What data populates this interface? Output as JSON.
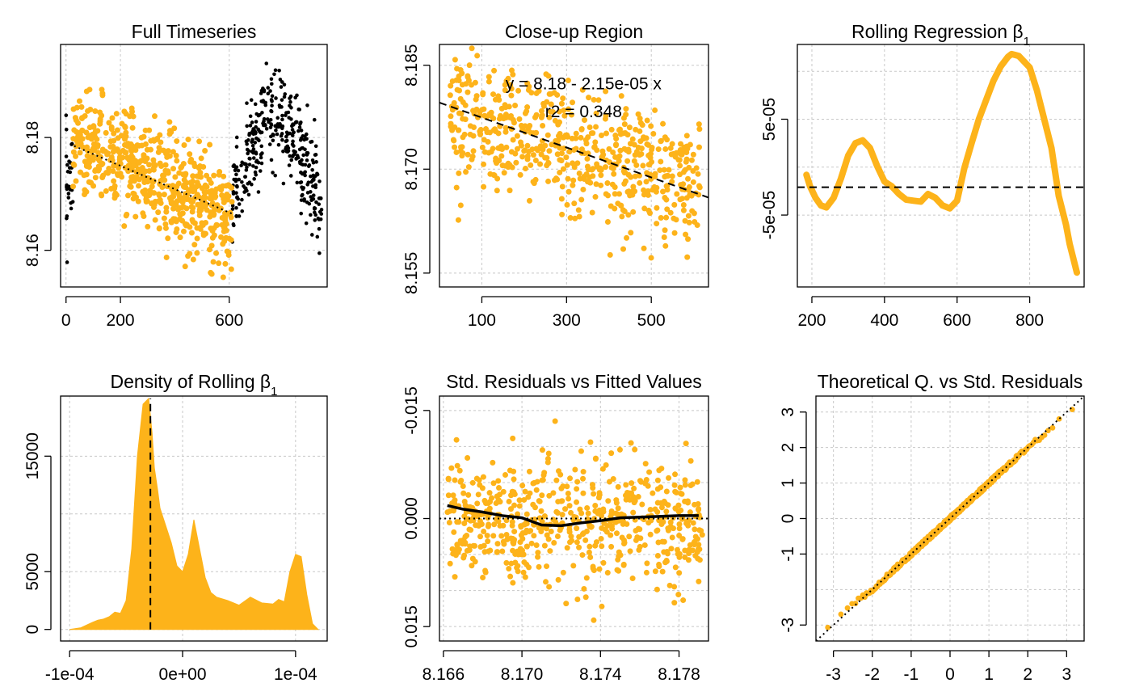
{
  "figure": {
    "accent": "#FDB31A",
    "secondary": "#000000"
  },
  "chart_data": [
    {
      "id": "full",
      "type": "scatter",
      "title": "Full Timeseries",
      "title_sub": "",
      "xlim": [
        -20,
        960
      ],
      "ylim": [
        8.1535,
        8.1965
      ],
      "xticks": [
        0,
        200,
        600
      ],
      "yticks": [
        8.16,
        8.18
      ],
      "vertical_y_labels": true,
      "xlabel": "",
      "ylabel": "",
      "series": [
        {
          "color": "#000000",
          "points_generator": {
            "x_ranges": [
              [
                0,
                25
              ],
              [
                610,
                940
              ]
            ],
            "n": 380,
            "trend": "0-25: 8.1725; 610-735: 8.168 to 8.184; 735-800: 8.184; 800-940: 8.184 to 8.168",
            "noise_sd": 0.0042
          }
        },
        {
          "color": "#FDB31A",
          "points_generator": {
            "x_ranges": [
              [
                25,
                610
              ]
            ],
            "n": 600,
            "trend": "8.1795 at x=25 to 8.166 at x=610",
            "noise_sd": 0.0045,
            "y_range": [
              8.1545,
              8.1885
            ]
          }
        }
      ],
      "lines": [
        {
          "type": "dotted",
          "x": [
            30,
            610
          ],
          "y": [
            8.1785,
            8.1665
          ],
          "color": "#000000"
        }
      ]
    },
    {
      "id": "closeup",
      "type": "scatter",
      "title": "Close-up Region",
      "title_sub": "",
      "xlim": [
        0,
        635
      ],
      "ylim": [
        8.153,
        8.188
      ],
      "xticks": [
        100,
        300,
        500
      ],
      "yticks": [
        8.155,
        8.17,
        8.185
      ],
      "ytick_labels": [
        "8.155",
        "8.170",
        "8.185"
      ],
      "vertical_y_labels": true,
      "xlabel": "",
      "ylabel": "",
      "annotations": [
        {
          "text": "y = 8.18 - 2.15e-05 x",
          "x": 340,
          "y": 8.1815
        },
        {
          "text": "r2 = 0.348",
          "x": 340,
          "y": 8.1775
        }
      ],
      "series": [
        {
          "color": "#FDB31A",
          "points_generator": {
            "x_ranges": [
              [
                25,
                615
              ]
            ],
            "n": 600,
            "trend": "8.178 at x=25 to 8.1668 at x=615",
            "noise_sd": 0.0045,
            "y_range": [
              8.1545,
              8.1875
            ]
          }
        }
      ],
      "lines": [
        {
          "type": "dashed",
          "x": [
            0,
            635
          ],
          "y": [
            8.1796,
            8.1659
          ],
          "color": "#000000"
        }
      ]
    },
    {
      "id": "rolling",
      "type": "line",
      "title": "Rolling Regression β",
      "title_sub": "1",
      "xlim": [
        160,
        950
      ],
      "ylim": [
        -0.000125,
        0.000128
      ],
      "xticks": [
        200,
        400,
        600,
        800
      ],
      "yticks": [
        -5e-05,
        5e-05
      ],
      "ytick_labels": [
        "-5e-05",
        "5e-05"
      ],
      "extra_gridlines_y": [
        0,
        0.0001
      ],
      "vertical_y_labels": true,
      "xlabel": "",
      "ylabel": "",
      "series": [
        {
          "color": "#FDB31A",
          "x": [
            185,
            195,
            210,
            225,
            240,
            260,
            280,
            300,
            320,
            340,
            360,
            380,
            400,
            420,
            440,
            460,
            480,
            500,
            520,
            540,
            560,
            580,
            600,
            620,
            640,
            660,
            680,
            700,
            720,
            740,
            750,
            760,
            770,
            780,
            790,
            800,
            820,
            840,
            860,
            880,
            900,
            910,
            920,
            930
          ],
          "y": [
            -8e-06,
            -2e-05,
            -3.2e-05,
            -4e-05,
            -4.2e-05,
            -3.2e-05,
            -1.2e-05,
            1.2e-05,
            2.5e-05,
            2.8e-05,
            2e-05,
            1e-06,
            -1.5e-05,
            -2e-05,
            -2.8e-05,
            -3.4e-05,
            -3.5e-05,
            -3.6e-05,
            -2.8e-05,
            -3.2e-05,
            -4e-05,
            -4.3e-05,
            -3.5e-05,
            -1e-06,
            2.5e-05,
            5e-05,
            7e-05,
            9e-05,
            0.000105,
            0.000115,
            0.000118,
            0.000117,
            0.000116,
            0.000112,
            0.000108,
            0.000104,
            8e-05,
            5e-05,
            2e-05,
            -3e-05,
            -6e-05,
            -8e-05,
            -9.5e-05,
            -0.00011
          ]
        }
      ],
      "lines": [
        {
          "type": "dashed",
          "hline": -2.1e-05,
          "color": "#000000"
        }
      ]
    },
    {
      "id": "density",
      "type": "area",
      "title": "Density of Rolling β",
      "title_sub": "1",
      "xlim": [
        -0.000108,
        0.000128
      ],
      "ylim": [
        -1000,
        20200
      ],
      "xticks": [
        -0.0001,
        0,
        0.0001
      ],
      "xtick_labels": [
        "-1e-04",
        "0e+00",
        "1e-04"
      ],
      "yticks": [
        0,
        5000,
        15000
      ],
      "yticks_minor_grid": [
        10000
      ],
      "vertical_y_labels": true,
      "xlabel": "",
      "ylabel": "",
      "series": [
        {
          "color": "#FDB31A",
          "x": [
            -0.0001,
            -9e-05,
            -8e-05,
            -7.5e-05,
            -7e-05,
            -6.5e-05,
            -6e-05,
            -5.5e-05,
            -5e-05,
            -4.5e-05,
            -4e-05,
            -3.5e-05,
            -3e-05,
            -2.7e-05,
            -2.5e-05,
            -2.2e-05,
            -2e-05,
            -1.5e-05,
            -1e-05,
            -5e-06,
            0,
            5e-06,
            1e-05,
            1.5e-05,
            2e-05,
            2.5e-05,
            3e-05,
            4e-05,
            5e-05,
            6e-05,
            7e-05,
            8e-05,
            8.5e-05,
            9e-05,
            9.5e-05,
            0.0001,
            0.000105,
            0.00011,
            0.000115,
            0.00012
          ],
          "y": [
            0,
            150,
            600,
            800,
            900,
            1100,
            1500,
            1400,
            2500,
            7000,
            15000,
            19500,
            20000,
            17000,
            14000,
            12000,
            10500,
            9000,
            7500,
            5500,
            5000,
            6500,
            9500,
            7000,
            4500,
            3200,
            2800,
            2500,
            2100,
            2800,
            2300,
            2200,
            2600,
            2400,
            5000,
            6500,
            6300,
            3000,
            500,
            0
          ]
        }
      ],
      "lines": [
        {
          "type": "dashed",
          "vline": -2.85e-05,
          "y_to": 20000,
          "color": "#000000"
        }
      ]
    },
    {
      "id": "residuals",
      "type": "scatter",
      "title": "Std. Residuals vs Fitted Values",
      "title_sub": "",
      "xlim": [
        8.1658,
        8.1795
      ],
      "ylim": [
        -0.017,
        0.017
      ],
      "xticks": [
        8.166,
        8.17,
        8.174,
        8.178
      ],
      "xtick_labels": [
        "8.166",
        "8.170",
        "8.174",
        "8.178"
      ],
      "yticks": [
        -0.015,
        0,
        0.015
      ],
      "ytick_labels": [
        "-0.015",
        "0.000",
        "0.015"
      ],
      "extra_gridlines_y": [
        -0.01,
        -0.005,
        0.005,
        0.01
      ],
      "reversed_y": true,
      "vertical_y_labels": true,
      "xlabel": "",
      "ylabel": "",
      "series": [
        {
          "color": "#FDB31A",
          "points_generator": {
            "x_ranges": [
              [
                8.1662,
                8.1792
              ]
            ],
            "n": 600,
            "trend": "0",
            "noise_sd": 0.0045,
            "y_range": [
              -0.0155,
              0.0155
            ]
          }
        }
      ],
      "lines": [
        {
          "type": "dotted",
          "hline": 0,
          "color": "#000000"
        },
        {
          "type": "solid",
          "x": [
            8.1662,
            8.167,
            8.168,
            8.169,
            8.17,
            8.171,
            8.172,
            8.173,
            8.174,
            8.175,
            8.176,
            8.177,
            8.178,
            8.179
          ],
          "y": [
            -0.0018,
            -0.0013,
            -0.0009,
            -0.0004,
            -0.0001,
            0.0009,
            0.001,
            0.0006,
            0.0003,
            -0.0001,
            -0.0002,
            -0.0003,
            -0.0004,
            -0.0004
          ],
          "color": "#000000"
        }
      ]
    },
    {
      "id": "qq",
      "type": "scatter",
      "title": "Theoretical Q. vs Std. Residuals",
      "title_sub": "",
      "xlim": [
        -3.45,
        3.45
      ],
      "ylim": [
        -3.45,
        3.45
      ],
      "xticks": [
        -3,
        -2,
        -1,
        0,
        1,
        2,
        3
      ],
      "yticks": [
        -3,
        -1,
        0,
        1,
        2,
        3
      ],
      "extra_gridlines_y": [
        -2
      ],
      "vertical_y_labels": true,
      "xlabel": "",
      "ylabel": "",
      "series": [
        {
          "color": "#FDB31A",
          "points_generator": {
            "qq": true,
            "n": 600,
            "x_range": [
              -3.1,
              3.1
            ]
          }
        }
      ],
      "lines": [
        {
          "type": "dotted",
          "x": [
            -3.45,
            3.45
          ],
          "y": [
            -3.45,
            3.45
          ],
          "color": "#000000"
        }
      ]
    }
  ]
}
